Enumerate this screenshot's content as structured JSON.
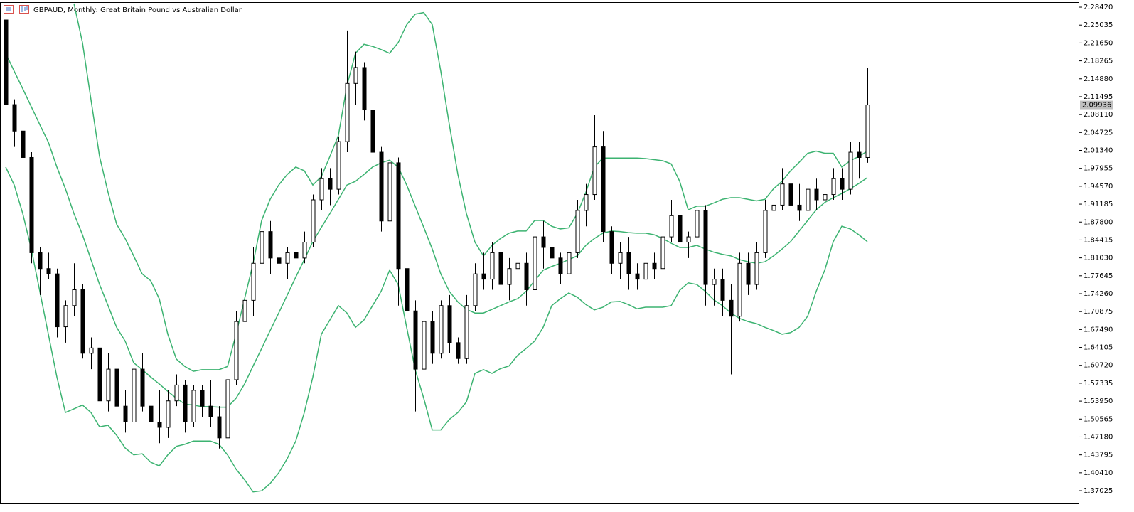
{
  "chart_data": {
    "type": "candlestick",
    "title": "GBPAUD, Monthly:  Great Britain Pound vs Australian Dollar",
    "ylim": [
      1.3461,
      2.2923
    ],
    "yticks": [
      {
        "value": 2.2842,
        "label": "2.28420"
      },
      2.25035,
      {
        "value": 2.2165,
        "label": "2.21650"
      },
      2.18265,
      {
        "value": 2.1488,
        "label": "2.14880"
      },
      2.11495,
      {
        "value": 2.0811,
        "label": "2.08110"
      },
      2.04725,
      {
        "value": 2.0134,
        "label": "2.01340"
      },
      1.97955,
      {
        "value": 1.9457,
        "label": "1.94570"
      },
      1.91185,
      {
        "value": 1.878,
        "label": "1.87800"
      },
      1.84415,
      {
        "value": 1.8103,
        "label": "1.81030"
      },
      1.77645,
      {
        "value": 1.7426,
        "label": "1.74260"
      },
      1.70875,
      {
        "value": 1.6749,
        "label": "1.67490"
      },
      1.64105,
      {
        "value": 1.6072,
        "label": "1.60720"
      },
      1.57335,
      {
        "value": 1.5395,
        "label": "1.53950"
      },
      1.50565,
      {
        "value": 1.4718,
        "label": "1.47180"
      },
      1.43795,
      {
        "value": 1.4041,
        "label": "1.40410"
      },
      1.37025
    ],
    "current_price": 2.09936,
    "open": [
      2.26,
      2.1,
      2.05,
      2.0,
      1.82,
      1.79,
      1.78,
      1.68,
      1.72,
      1.75,
      1.63,
      1.64,
      1.54,
      1.6,
      1.53,
      1.5,
      1.6,
      1.53,
      1.5,
      1.49,
      1.54,
      1.57,
      1.5,
      1.56,
      1.53,
      1.51,
      1.47,
      1.58,
      1.69,
      1.73,
      1.8,
      1.86,
      1.81,
      1.8,
      1.82,
      1.81,
      1.84,
      1.92,
      1.96,
      1.94,
      2.03,
      2.14,
      2.17,
      2.09,
      2.01,
      1.88,
      1.99,
      1.79,
      1.71,
      1.6,
      1.69,
      1.63,
      1.72,
      1.65,
      1.62,
      1.72,
      1.78,
      1.77,
      1.82,
      1.76,
      1.79,
      1.8,
      1.75,
      1.85,
      1.83,
      1.81,
      1.78,
      1.82,
      1.9,
      1.93,
      2.02,
      1.86,
      1.8,
      1.82,
      1.78,
      1.77,
      1.8,
      1.79,
      1.85,
      1.89,
      1.84,
      1.85,
      1.9,
      1.76,
      1.77,
      1.73,
      1.7,
      1.8,
      1.76,
      1.82,
      1.9,
      1.91,
      1.95,
      1.91,
      1.9,
      1.94,
      1.92,
      1.93,
      1.96,
      1.94,
      2.01,
      2.0
    ],
    "high": [
      2.28,
      2.11,
      2.1,
      2.01,
      1.83,
      1.82,
      1.79,
      1.73,
      1.8,
      1.76,
      1.66,
      1.65,
      1.63,
      1.61,
      1.56,
      1.62,
      1.63,
      1.59,
      1.56,
      1.56,
      1.59,
      1.58,
      1.57,
      1.57,
      1.58,
      1.53,
      1.6,
      1.71,
      1.75,
      1.83,
      1.88,
      1.88,
      1.83,
      1.83,
      1.85,
      1.86,
      1.93,
      1.98,
      1.98,
      2.04,
      2.24,
      2.2,
      2.18,
      2.1,
      2.02,
      2.0,
      2.0,
      1.81,
      1.73,
      1.7,
      1.71,
      1.73,
      1.74,
      1.66,
      1.74,
      1.8,
      1.82,
      1.84,
      1.84,
      1.81,
      1.87,
      1.82,
      1.86,
      1.88,
      1.87,
      1.82,
      1.84,
      1.92,
      1.95,
      2.08,
      2.05,
      1.87,
      1.84,
      1.85,
      1.8,
      1.81,
      1.82,
      1.86,
      1.92,
      1.9,
      1.86,
      1.93,
      1.91,
      1.79,
      1.79,
      1.76,
      1.82,
      1.82,
      1.84,
      1.92,
      1.93,
      1.98,
      1.96,
      1.95,
      1.95,
      1.96,
      1.95,
      1.98,
      1.98,
      2.03,
      2.03,
      2.17
    ],
    "low": [
      2.08,
      2.02,
      1.98,
      1.8,
      1.74,
      1.77,
      1.66,
      1.65,
      1.7,
      1.62,
      1.6,
      1.52,
      1.52,
      1.51,
      1.48,
      1.49,
      1.52,
      1.48,
      1.46,
      1.47,
      1.53,
      1.48,
      1.49,
      1.51,
      1.49,
      1.45,
      1.45,
      1.57,
      1.66,
      1.7,
      1.78,
      1.78,
      1.78,
      1.77,
      1.73,
      1.8,
      1.83,
      1.9,
      1.91,
      1.93,
      2.01,
      2.1,
      2.07,
      2.0,
      1.86,
      1.87,
      1.72,
      1.66,
      1.52,
      1.59,
      1.61,
      1.62,
      1.63,
      1.61,
      1.61,
      1.71,
      1.75,
      1.75,
      1.74,
      1.73,
      1.78,
      1.72,
      1.74,
      1.79,
      1.8,
      1.76,
      1.77,
      1.81,
      1.87,
      1.92,
      1.84,
      1.78,
      1.77,
      1.75,
      1.75,
      1.76,
      1.77,
      1.78,
      1.84,
      1.82,
      1.81,
      1.84,
      1.72,
      1.72,
      1.7,
      1.59,
      1.69,
      1.74,
      1.75,
      1.81,
      1.87,
      1.9,
      1.89,
      1.88,
      1.89,
      1.9,
      1.9,
      1.92,
      1.92,
      1.93,
      1.96,
      1.99
    ],
    "close": [
      2.1,
      2.05,
      2.0,
      1.82,
      1.79,
      1.78,
      1.68,
      1.72,
      1.75,
      1.63,
      1.64,
      1.54,
      1.6,
      1.53,
      1.5,
      1.6,
      1.53,
      1.5,
      1.49,
      1.54,
      1.57,
      1.5,
      1.56,
      1.53,
      1.51,
      1.47,
      1.58,
      1.69,
      1.73,
      1.8,
      1.86,
      1.81,
      1.8,
      1.82,
      1.81,
      1.84,
      1.92,
      1.96,
      1.94,
      2.03,
      2.14,
      2.17,
      2.09,
      2.01,
      1.88,
      1.99,
      1.79,
      1.71,
      1.6,
      1.69,
      1.63,
      1.72,
      1.65,
      1.62,
      1.72,
      1.78,
      1.77,
      1.82,
      1.76,
      1.79,
      1.8,
      1.75,
      1.85,
      1.83,
      1.81,
      1.78,
      1.82,
      1.9,
      1.93,
      2.02,
      1.86,
      1.8,
      1.82,
      1.78,
      1.77,
      1.8,
      1.79,
      1.85,
      1.89,
      1.84,
      1.85,
      1.9,
      1.76,
      1.77,
      1.73,
      1.7,
      1.8,
      1.76,
      1.82,
      1.9,
      1.91,
      1.95,
      1.91,
      1.9,
      1.94,
      1.92,
      1.93,
      1.96,
      1.94,
      2.01,
      2.0,
      2.09936
    ],
    "bands_color": "#3cb371",
    "bands": [
      {
        "values": [
          null,
          null,
          null,
          null,
          null,
          null,
          null,
          null,
          2.291,
          2.217,
          2.109,
          2.002,
          1.934,
          1.874,
          1.847,
          1.814,
          1.78,
          1.767,
          1.733,
          1.666,
          1.619,
          1.605,
          1.596,
          1.599,
          1.599,
          1.599,
          1.605,
          1.666,
          1.733,
          1.8,
          1.881,
          1.921,
          1.948,
          1.968,
          1.982,
          1.975,
          1.948,
          1.964,
          2.002,
          2.042,
          2.136,
          2.197,
          2.214,
          2.21,
          2.204,
          2.197,
          2.217,
          2.251,
          2.271,
          2.274,
          2.251,
          2.163,
          2.062,
          1.968,
          1.894,
          1.84,
          1.814,
          1.834,
          1.847,
          1.857,
          1.861,
          1.861,
          1.881,
          1.881,
          1.87,
          1.865,
          1.867,
          1.894,
          1.934,
          1.982,
          1.999,
          1.999,
          1.999,
          1.999,
          1.999,
          1.998,
          1.996,
          1.994,
          1.988,
          1.955,
          1.901,
          1.908,
          1.908,
          1.914,
          1.921,
          1.924,
          1.924,
          1.921,
          1.918,
          1.921,
          1.941,
          1.955,
          1.975,
          1.991,
          2.008,
          2.012,
          2.008,
          2.008,
          1.982,
          1.994,
          2.002,
          2.012
        ]
      },
      {
        "values": [
          2.197,
          2.163,
          2.13,
          2.096,
          2.062,
          2.029,
          1.982,
          1.941,
          1.894,
          1.854,
          1.807,
          1.76,
          1.72,
          1.679,
          1.653,
          1.612,
          1.599,
          1.585,
          1.572,
          1.558,
          1.545,
          1.534,
          1.532,
          1.529,
          1.529,
          1.528,
          1.528,
          1.545,
          1.572,
          1.606,
          1.639,
          1.673,
          1.706,
          1.74,
          1.774,
          1.807,
          1.841,
          1.868,
          1.894,
          1.921,
          1.948,
          1.955,
          1.968,
          1.982,
          1.99,
          1.995,
          1.982,
          1.948,
          1.908,
          1.868,
          1.827,
          1.78,
          1.747,
          1.727,
          1.713,
          1.706,
          1.706,
          1.713,
          1.72,
          1.727,
          1.733,
          1.747,
          1.767,
          1.787,
          1.794,
          1.8,
          1.807,
          1.814,
          1.834,
          1.847,
          1.857,
          1.861,
          1.86,
          1.858,
          1.857,
          1.857,
          1.854,
          1.847,
          1.838,
          1.83,
          1.83,
          1.834,
          1.827,
          1.821,
          1.817,
          1.814,
          1.807,
          1.803,
          1.8,
          1.803,
          1.814,
          1.827,
          1.841,
          1.861,
          1.881,
          1.901,
          1.915,
          1.924,
          1.932,
          1.941,
          1.951,
          1.962
        ]
      },
      {
        "values": [
          1.982,
          1.948,
          1.894,
          1.827,
          1.747,
          1.666,
          1.585,
          1.518,
          1.525,
          1.532,
          1.518,
          1.491,
          1.494,
          1.475,
          1.451,
          1.438,
          1.44,
          1.424,
          1.417,
          1.438,
          1.454,
          1.458,
          1.464,
          1.464,
          1.464,
          1.458,
          1.438,
          1.411,
          1.391,
          1.368,
          1.37,
          1.384,
          1.404,
          1.431,
          1.464,
          1.518,
          1.585,
          1.666,
          1.693,
          1.72,
          1.706,
          1.679,
          1.693,
          1.72,
          1.747,
          1.787,
          1.76,
          1.679,
          1.599,
          1.545,
          1.485,
          1.485,
          1.505,
          1.518,
          1.538,
          1.592,
          1.599,
          1.592,
          1.601,
          1.606,
          1.626,
          1.639,
          1.653,
          1.679,
          1.72,
          1.733,
          1.744,
          1.736,
          1.722,
          1.712,
          1.717,
          1.727,
          1.728,
          1.722,
          1.714,
          1.717,
          1.717,
          1.717,
          1.72,
          1.749,
          1.763,
          1.76,
          1.747,
          1.731,
          1.72,
          1.706,
          1.696,
          1.69,
          1.686,
          1.679,
          1.673,
          1.666,
          1.669,
          1.679,
          1.7,
          1.747,
          1.787,
          1.841,
          1.87,
          1.865,
          1.854,
          1.841
        ]
      }
    ]
  }
}
